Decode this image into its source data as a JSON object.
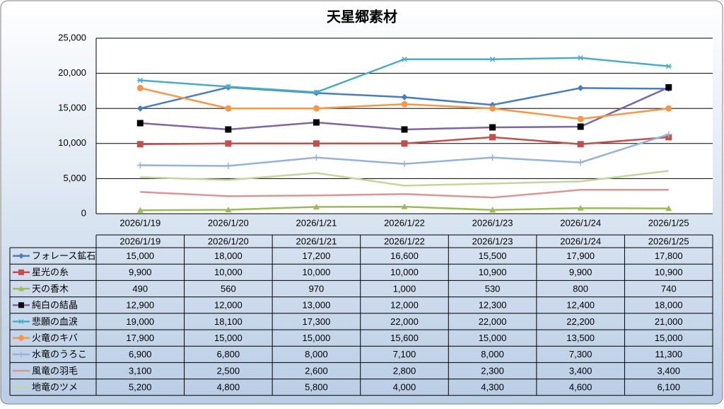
{
  "chart_data": {
    "type": "line",
    "title": "天星郷素材",
    "categories": [
      "2026/1/19",
      "2026/1/20",
      "2026/1/21",
      "2026/1/22",
      "2026/1/23",
      "2026/1/24",
      "2026/1/25"
    ],
    "ylim": [
      0,
      25000
    ],
    "yticks": [
      0,
      {
        "value": 5000,
        "label": "5,000"
      },
      {
        "value": 10000,
        "label": "10,000"
      },
      {
        "value": 15000,
        "label": "15,000"
      },
      {
        "value": 20000,
        "label": "20,000"
      },
      {
        "value": 25000,
        "label": "25,000"
      }
    ],
    "grid": true,
    "series": [
      {
        "name": "フォレース鉱石",
        "color": "#4a7ebb",
        "marker": "diamond",
        "marker_color": "#4a7ebb",
        "values": [
          15000,
          18000,
          17200,
          16600,
          15500,
          17900,
          17800
        ],
        "value_labels": [
          "15,000",
          "18,000",
          "17,200",
          "16,600",
          "15,500",
          "17,900",
          "17,800"
        ]
      },
      {
        "name": "星光の糸",
        "color": "#c0504d",
        "marker": "square",
        "marker_color": "#c0504d",
        "values": [
          9900,
          10000,
          10000,
          10000,
          10900,
          9900,
          10900
        ],
        "value_labels": [
          "9,900",
          "10,000",
          "10,000",
          "10,000",
          "10,900",
          "9,900",
          "10,900"
        ]
      },
      {
        "name": "天の香木",
        "color": "#9bbb59",
        "marker": "triangle",
        "marker_color": "#9bbb59",
        "values": [
          490,
          560,
          970,
          1000,
          530,
          800,
          740
        ],
        "value_labels": [
          "490",
          "560",
          "970",
          "1,000",
          "530",
          "800",
          "740"
        ]
      },
      {
        "name": "純白の結晶",
        "color": "#8064a2",
        "marker": "square",
        "marker_color": "#000000",
        "values": [
          12900,
          12000,
          13000,
          12000,
          12300,
          12400,
          18000
        ],
        "value_labels": [
          "12,900",
          "12,000",
          "13,000",
          "12,000",
          "12,300",
          "12,400",
          "18,000"
        ]
      },
      {
        "name": "悲願の血涙",
        "color": "#4bacc6",
        "marker": "star",
        "marker_color": "#4bacc6",
        "values": [
          19000,
          18100,
          17300,
          22000,
          22000,
          22200,
          21000
        ],
        "value_labels": [
          "19,000",
          "18,100",
          "17,300",
          "22,000",
          "22,000",
          "22,200",
          "21,000"
        ]
      },
      {
        "name": "火竜のキバ",
        "color": "#f79646",
        "marker": "circle",
        "marker_color": "#f79646",
        "values": [
          17900,
          15000,
          15000,
          15600,
          15000,
          13500,
          15000
        ],
        "value_labels": [
          "17,900",
          "15,000",
          "15,000",
          "15,600",
          "15,000",
          "13,500",
          "15,000"
        ]
      },
      {
        "name": "水竜のうろこ",
        "color": "#95b3d7",
        "marker": "plus",
        "marker_color": "#95b3d7",
        "values": [
          6900,
          6800,
          8000,
          7100,
          8000,
          7300,
          11300
        ],
        "value_labels": [
          "6,900",
          "6,800",
          "8,000",
          "7,100",
          "8,000",
          "7,300",
          "11,300"
        ]
      },
      {
        "name": "風竜の羽毛",
        "color": "#d99694",
        "marker": "none",
        "marker_color": "#d99694",
        "values": [
          3100,
          2500,
          2600,
          2800,
          2300,
          3400,
          3400
        ],
        "value_labels": [
          "3,100",
          "2,500",
          "2,600",
          "2,800",
          "2,300",
          "3,400",
          "3,400"
        ]
      },
      {
        "name": "地竜のツメ",
        "color": "#c3d69b",
        "marker": "none",
        "marker_color": "#c3d69b",
        "values": [
          5200,
          4800,
          5800,
          4000,
          4300,
          4600,
          6100
        ],
        "value_labels": [
          "5,200",
          "4,800",
          "5,800",
          "4,000",
          "4,300",
          "4,600",
          "6,100"
        ]
      }
    ]
  }
}
